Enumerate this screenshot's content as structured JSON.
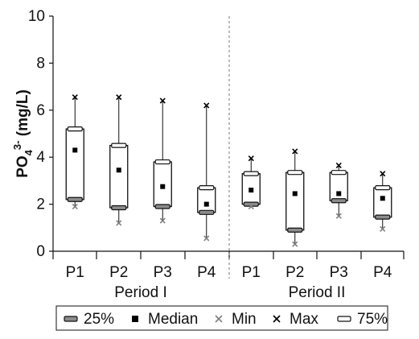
{
  "chart_data": {
    "type": "boxplot",
    "y_axis": {
      "label": "PO",
      "label_sub": "4",
      "label_sup": "3-",
      "label_unit": " (mg/L)",
      "min": 0,
      "max": 10,
      "ticks": [
        0,
        2,
        4,
        6,
        8,
        10
      ],
      "tick_labels": [
        "0",
        "2",
        "4",
        "6",
        "8",
        "10"
      ]
    },
    "periods": [
      {
        "label": "Period I",
        "categories": [
          {
            "label": "P1",
            "q25": 2.2,
            "median": 4.3,
            "q75": 5.2,
            "min": 1.9,
            "max": 6.55
          },
          {
            "label": "P2",
            "q25": 1.85,
            "median": 3.45,
            "q75": 4.5,
            "min": 1.2,
            "max": 6.55
          },
          {
            "label": "P3",
            "q25": 1.9,
            "median": 2.75,
            "q75": 3.8,
            "min": 1.3,
            "max": 6.4
          },
          {
            "label": "P4",
            "q25": 1.65,
            "median": 2.0,
            "q75": 2.7,
            "min": 0.55,
            "max": 6.2
          }
        ]
      },
      {
        "label": "Period II",
        "categories": [
          {
            "label": "P1",
            "q25": 2.0,
            "median": 2.6,
            "q75": 3.3,
            "min": 1.9,
            "max": 3.95
          },
          {
            "label": "P2",
            "q25": 0.9,
            "median": 2.45,
            "q75": 3.35,
            "min": 0.3,
            "max": 4.25
          },
          {
            "label": "P3",
            "q25": 2.15,
            "median": 2.45,
            "q75": 3.35,
            "min": 1.5,
            "max": 3.65
          },
          {
            "label": "P4",
            "q25": 1.45,
            "median": 2.25,
            "q75": 2.7,
            "min": 0.95,
            "max": 3.3
          }
        ]
      }
    ],
    "legend": {
      "placement": "bottom",
      "items": [
        {
          "key": "q25",
          "label": "25%"
        },
        {
          "key": "median",
          "label": "Median"
        },
        {
          "key": "min",
          "label": "Min"
        },
        {
          "key": "max",
          "label": "Max"
        },
        {
          "key": "q75",
          "label": "75%"
        }
      ]
    },
    "colors": {
      "q25_fill": "#8c8c8c",
      "median": "#000000",
      "min": "#808080",
      "max": "#000000",
      "q75_fill": "#ffffff",
      "divider": "#777777"
    }
  }
}
